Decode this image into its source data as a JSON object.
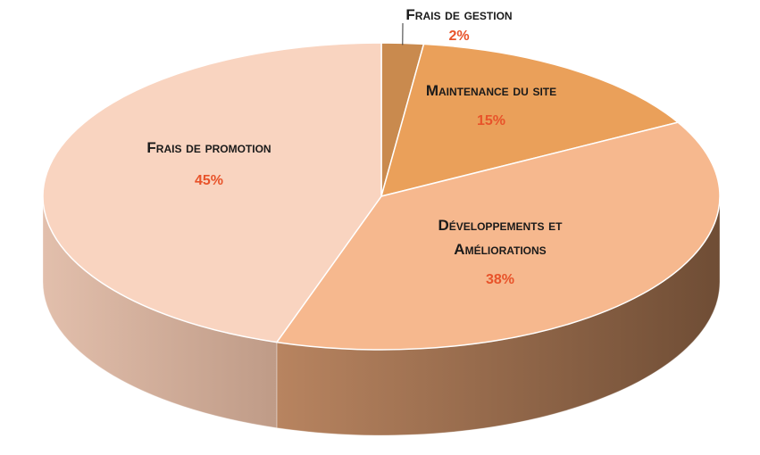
{
  "chart_data": {
    "type": "pie",
    "title": "",
    "three_d": true,
    "slices": [
      {
        "name": "Frais de gestion",
        "lines": [
          "Frais de gestion"
        ],
        "value": 2,
        "value_label": "2%",
        "color": "#c98a4e",
        "side_color": "#8a5a33"
      },
      {
        "name": "Maintenance du site",
        "lines": [
          "Maintenance du site"
        ],
        "value": 15,
        "value_label": "15%",
        "color": "#eaa05a",
        "side_color": "#8e6443"
      },
      {
        "name": "Développements et Améliorations",
        "lines": [
          "Développements et",
          "Améliorations"
        ],
        "value": 38,
        "value_label": "38%",
        "color": "#f6b88e",
        "side_color": "#7a5338"
      },
      {
        "name": "Frais de promotion",
        "lines": [
          "Frais de promotion"
        ],
        "value": 45,
        "value_label": "45%",
        "color": "#f9d4c0",
        "side_color": "#c8a592"
      }
    ]
  }
}
